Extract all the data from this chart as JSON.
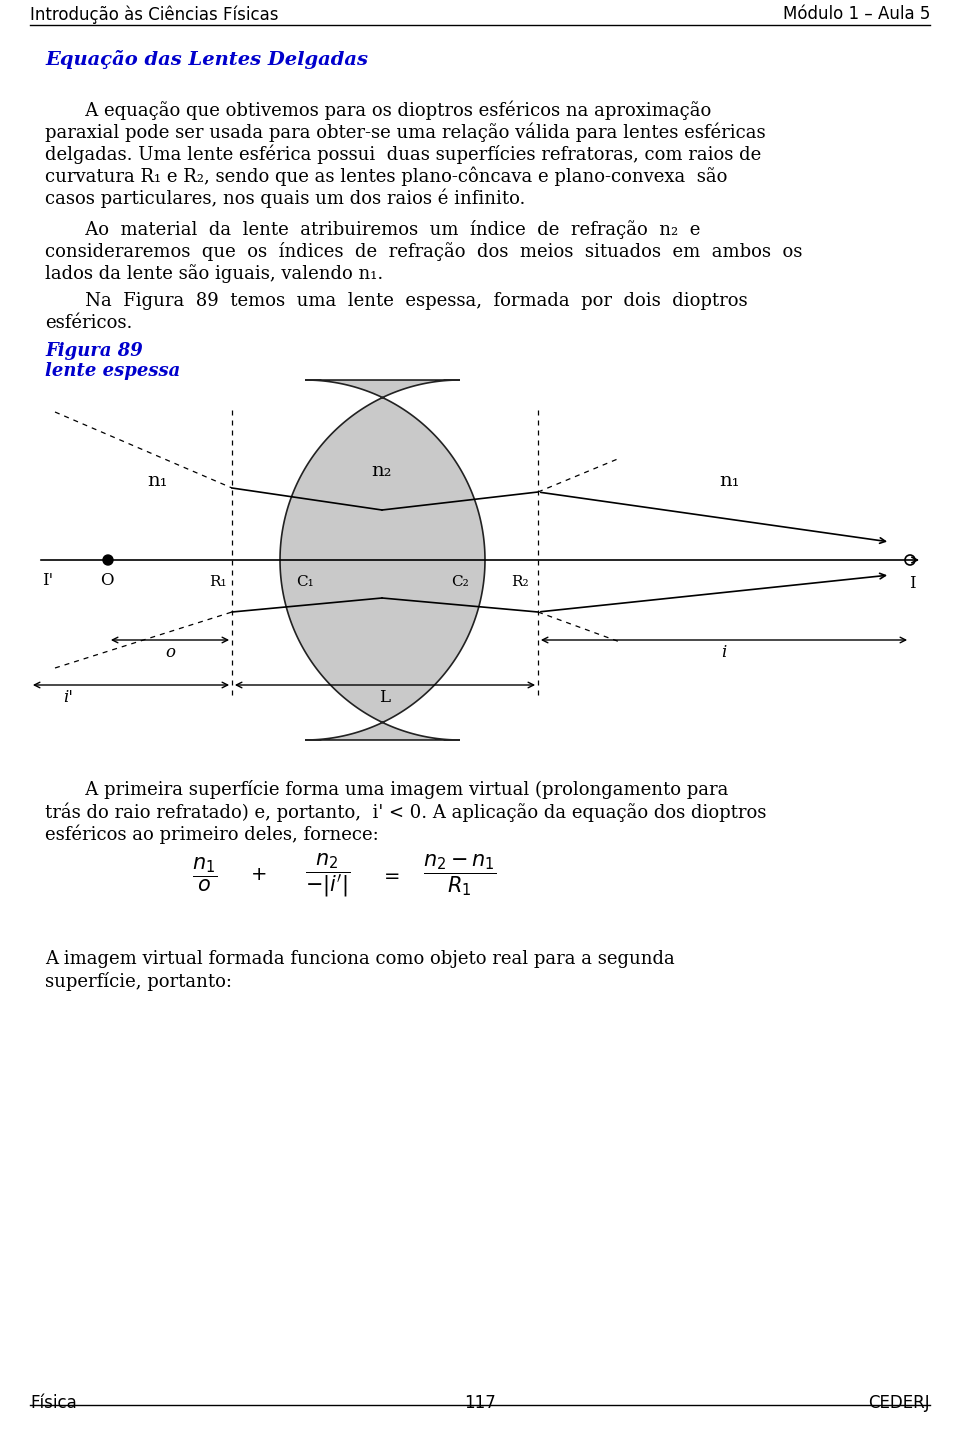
{
  "header_left": "Introdução às Ciências Físicas",
  "header_right": "Módulo 1 – Aula 5",
  "footer_left": "Física",
  "footer_center": "117",
  "footer_right": "CEDERJ",
  "title": "Equação das Lentes Delgadas",
  "title_color": "#0000cc",
  "background": "#ffffff",
  "text_color": "#000000",
  "p1_lines": [
    "       A equação que obtivemos para os dioptros esféricos na aproximação",
    "paraxial pode ser usada para obter-se uma relação válida para lentes esféricas",
    "delgadas. Uma lente esférica possui  duas superfícies refratoras, com raios de",
    "curvatura R₁ e R₂, sendo que as lentes plano-côncava e plano-convexa  são",
    "casos particulares, nos quais um dos raios é infinito."
  ],
  "p2_lines": [
    "       Ao  material  da  lente  atribuiremos  um  índice  de  refração  n₂  e",
    "consideraremos  que  os  índices  de  refração  dos  meios  situados  em  ambos  os",
    "lados da lente são iguais, valendo n₁."
  ],
  "p3_lines": [
    "       Na  Figura  89  temos  uma  lente  espessa,  formada  por  dois  dioptros",
    "esféricos."
  ],
  "fig_caption_line1": "Figura 89",
  "fig_caption_line2": "lente espessa",
  "p4_lines": [
    "       A primeira superfície forma uma imagem virtual (prolongamento para",
    "trás do raio refratado) e, portanto,  i' < 0. A aplicação da equação dos dioptros",
    "esféricos ao primeiro deles, fornece:"
  ],
  "p5_lines": [
    "A imagem virtual formada funciona como objeto real para a segunda",
    "superfície, portanto:"
  ]
}
